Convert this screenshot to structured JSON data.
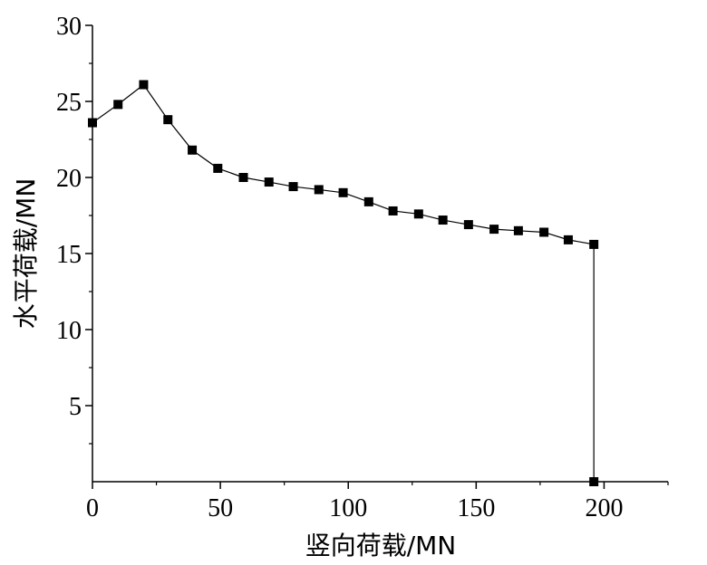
{
  "chart_data": {
    "type": "line",
    "xlabel": "竖向荷载/MN",
    "ylabel": "水平荷载/MN",
    "xlim": [
      0,
      225
    ],
    "ylim": [
      0,
      30
    ],
    "x_ticks": [
      0,
      50,
      100,
      150,
      200
    ],
    "y_ticks": [
      5,
      10,
      15,
      20,
      25,
      30
    ],
    "x_tick_labels": [
      "0",
      "50",
      "100",
      "150",
      "200"
    ],
    "y_tick_labels": [
      "5",
      "10",
      "15",
      "20",
      "25",
      "30"
    ],
    "grid": false,
    "marker": "square",
    "color": "#000000",
    "series": [
      {
        "x": [
          0,
          10,
          20,
          29.5,
          39,
          49,
          59,
          69,
          78.5,
          88.5,
          98,
          108,
          117.5,
          127.5,
          137,
          147,
          157,
          166.5,
          176.5,
          186,
          196,
          196
        ],
        "y": [
          23.6,
          24.8,
          26.1,
          23.8,
          21.8,
          20.6,
          20.0,
          19.7,
          19.4,
          19.2,
          19.0,
          18.4,
          17.8,
          17.6,
          17.2,
          16.9,
          16.6,
          16.5,
          16.4,
          15.9,
          15.6,
          0
        ]
      }
    ]
  }
}
